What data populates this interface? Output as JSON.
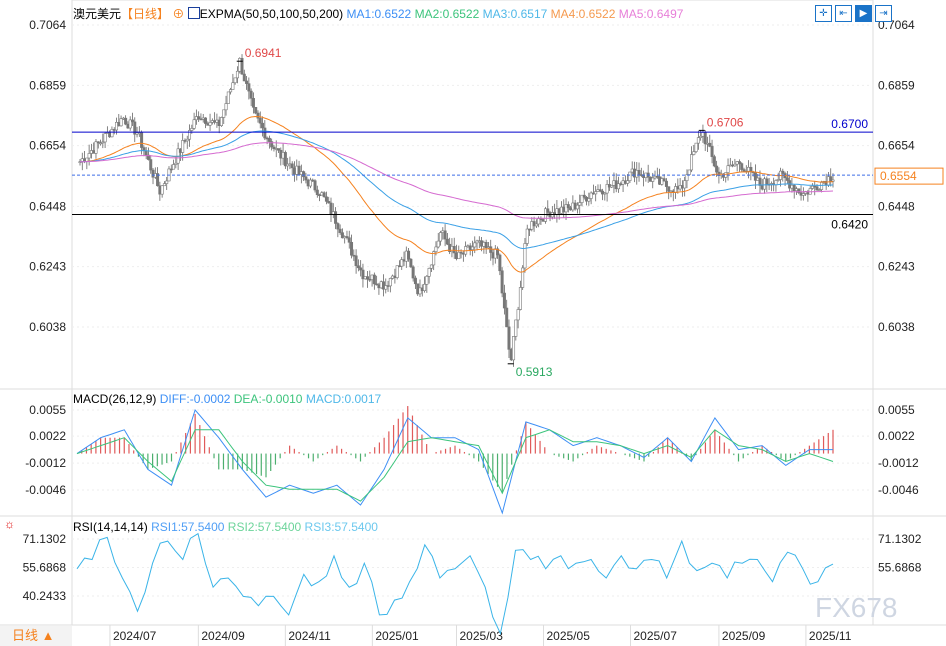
{
  "header": {
    "symbol": "澳元美元",
    "period": "【日线】",
    "indicator": "EXPMA(50,50,100,50,200)",
    "ma": [
      {
        "label": "MA1:0.6522",
        "color": "#3d8ff5"
      },
      {
        "label": "MA2:0.6522",
        "color": "#3cc47c"
      },
      {
        "label": "MA3:0.6517",
        "color": "#4fb8e8"
      },
      {
        "label": "MA4:0.6522",
        "color": "#f59a4f"
      },
      {
        "label": "MA5:0.6497",
        "color": "#e77fd8"
      }
    ]
  },
  "toolbar": [
    "crosshair-icon",
    "zoom-in-icon",
    "play-icon",
    "exit-icon"
  ],
  "period_button": "日线",
  "watermark": "FX678",
  "chart_data": [
    {
      "type": "candlestick",
      "name": "price",
      "ylim": [
        0.5913,
        0.7064
      ],
      "yticks": [
        "0.7064",
        "0.6859",
        "0.6654",
        "0.6448",
        "0.6243",
        "0.6038"
      ],
      "xticks": [
        "2024/07",
        "2024/09",
        "2024/11",
        "2025/01",
        "2025/03",
        "2025/05",
        "2025/07",
        "2025/09",
        "2025/11"
      ],
      "closes": [
        [
          "2024-06-10",
          0.66
        ],
        [
          "2024-06-25",
          0.667
        ],
        [
          "2024-07-10",
          0.675
        ],
        [
          "2024-07-20",
          0.67
        ],
        [
          "2024-08-05",
          0.65
        ],
        [
          "2024-08-15",
          0.66
        ],
        [
          "2024-09-01",
          0.676
        ],
        [
          "2024-09-15",
          0.672
        ],
        [
          "2024-09-30",
          0.6941
        ],
        [
          "2024-10-10",
          0.676
        ],
        [
          "2024-10-25",
          0.664
        ],
        [
          "2024-11-10",
          0.656
        ],
        [
          "2024-11-25",
          0.65
        ],
        [
          "2024-12-10",
          0.637
        ],
        [
          "2024-12-25",
          0.622
        ],
        [
          "2025-01-10",
          0.618
        ],
        [
          "2025-01-25",
          0.628
        ],
        [
          "2025-02-03",
          0.615
        ],
        [
          "2025-02-18",
          0.636
        ],
        [
          "2025-03-01",
          0.627
        ],
        [
          "2025-03-15",
          0.632
        ],
        [
          "2025-03-30",
          0.628
        ],
        [
          "2025-04-08",
          0.5913
        ],
        [
          "2025-04-20",
          0.638
        ],
        [
          "2025-05-05",
          0.643
        ],
        [
          "2025-05-20",
          0.644
        ],
        [
          "2025-06-05",
          0.65
        ],
        [
          "2025-06-20",
          0.652
        ],
        [
          "2025-07-05",
          0.657
        ],
        [
          "2025-07-20",
          0.653
        ],
        [
          "2025-08-05",
          0.65
        ],
        [
          "2025-08-20",
          0.6706
        ],
        [
          "2025-09-01",
          0.655
        ],
        [
          "2025-09-15",
          0.66
        ],
        [
          "2025-09-30",
          0.652
        ],
        [
          "2025-10-15",
          0.655
        ],
        [
          "2025-10-30",
          0.649
        ],
        [
          "2025-11-20",
          0.6554
        ]
      ],
      "high_label": "0.6941",
      "low_label": "0.5913",
      "recent_high_label": "0.6706",
      "levels": [
        {
          "value": 0.67,
          "label": "0.6700",
          "color": "#0000cc",
          "style": "solid"
        },
        {
          "value": 0.642,
          "label": "0.6420",
          "color": "#000000",
          "style": "solid"
        },
        {
          "value": 0.6554,
          "label": "0.6554",
          "color": "#3d6ee8",
          "style": "dashed"
        }
      ]
    },
    {
      "type": "macd",
      "title": "MACD(26,12,9)",
      "diff_label": "DIFF:-0.0002",
      "dea_label": "DEA:-0.0010",
      "macd_label": "MACD:0.0017",
      "ylim": [
        -0.0065,
        0.0065
      ],
      "yticks": [
        "0.0055",
        "0.0022",
        "-0.0012",
        "-0.0046"
      ],
      "diff": [
        0,
        0.002,
        0.003,
        -0.002,
        -0.004,
        0.0055,
        0.002,
        -0.002,
        -0.0055,
        -0.004,
        -0.005,
        -0.004,
        -0.0065,
        -0.002,
        0.0045,
        0.002,
        0.002,
        0.0005,
        -0.0075,
        0.004,
        0.003,
        0.001,
        0.002,
        0.001,
        -0.0005,
        0.002,
        -0.001,
        0.0045,
        0.0005,
        0.001,
        -0.0015,
        0.0005,
        0.0005
      ],
      "dea": [
        0,
        0.001,
        0.002,
        -0.001,
        -0.0035,
        0.003,
        0.003,
        -0.001,
        -0.004,
        -0.0045,
        -0.0045,
        -0.0045,
        -0.006,
        -0.003,
        0.0015,
        0.002,
        0.0015,
        0.001,
        -0.005,
        0.002,
        0.003,
        0.0015,
        0.0015,
        0.001,
        0,
        0.001,
        -0.0005,
        0.003,
        0.001,
        0.0005,
        -0.001,
        0,
        -0.001
      ]
    },
    {
      "type": "rsi",
      "title": "RSI(14,14,14)",
      "rsi1": "RSI1:57.5400",
      "rsi2": "RSI2:57.5400",
      "rsi3": "RSI3:57.5400",
      "ylim": [
        28,
        78
      ],
      "yticks": [
        "71.1302",
        "55.6868",
        "40.2433"
      ],
      "values": [
        55,
        60,
        72,
        50,
        32,
        58,
        70,
        60,
        74,
        45,
        50,
        40,
        35,
        40,
        30,
        52,
        48,
        62,
        45,
        58,
        30,
        38,
        48,
        68,
        50,
        55,
        62,
        45,
        20,
        65,
        60,
        55,
        62,
        58,
        60,
        50,
        62,
        55,
        60,
        50,
        70,
        54,
        58,
        50,
        58,
        60,
        48,
        64,
        55,
        48,
        57.54
      ]
    }
  ]
}
